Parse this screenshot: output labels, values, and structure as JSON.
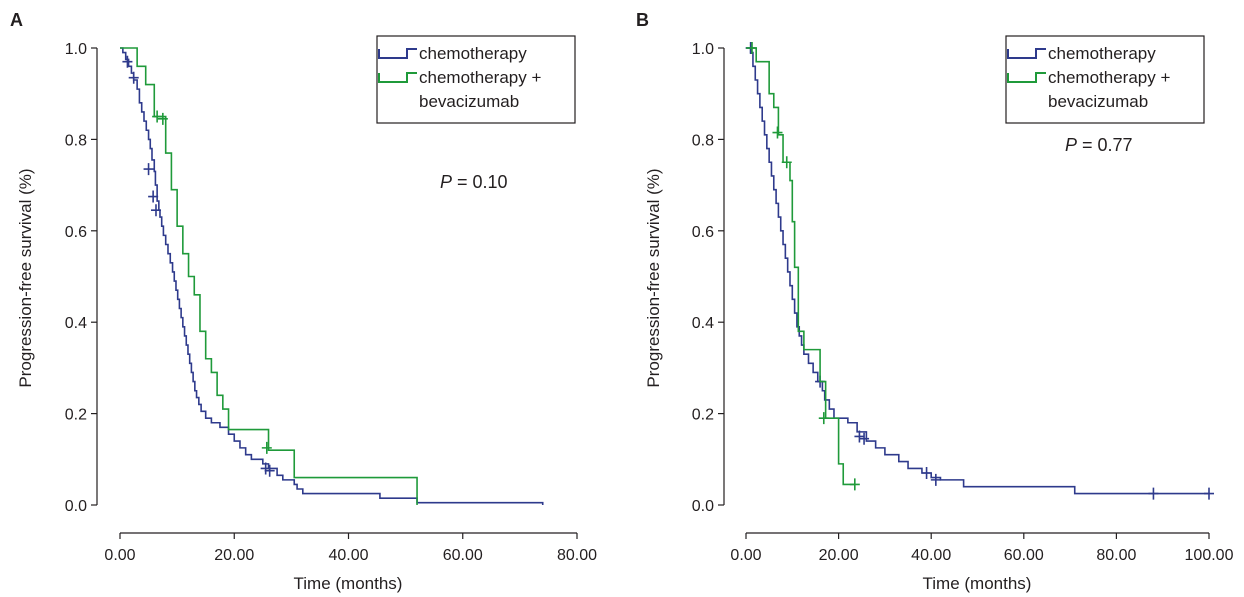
{
  "colors": {
    "chemotherapy": "#2e3a8c",
    "chemotherapy_bev": "#1f9a3a",
    "axis": "#231f20"
  },
  "chart_data": [
    {
      "type": "line",
      "panel": "A",
      "xlabel": "Time (months)",
      "ylabel": "Progression-free survival (%)",
      "xticks": [
        "0.00",
        "20.00",
        "40.00",
        "60.00",
        "80.00"
      ],
      "yticks": [
        "0.0",
        "0.2",
        "0.4",
        "0.6",
        "0.8",
        "1.0"
      ],
      "xlim": [
        0,
        80
      ],
      "ylim": [
        0,
        1.0
      ],
      "legend_position": "top-right",
      "annotation": {
        "prefix": "P",
        "text": " = 0.10"
      },
      "series": [
        {
          "name": "chemotherapy",
          "color_key": "chemotherapy",
          "legend_lines": [
            "chemotherapy"
          ],
          "steps": [
            [
              0,
              1.0
            ],
            [
              0.5,
              0.99
            ],
            [
              1,
              0.975
            ],
            [
              1.5,
              0.96
            ],
            [
              2,
              0.945
            ],
            [
              2.4,
              0.93
            ],
            [
              3,
              0.91
            ],
            [
              3.4,
              0.88
            ],
            [
              3.8,
              0.86
            ],
            [
              4.2,
              0.84
            ],
            [
              4.6,
              0.82
            ],
            [
              5,
              0.8
            ],
            [
              5.3,
              0.78
            ],
            [
              5.6,
              0.755
            ],
            [
              6,
              0.73
            ],
            [
              6.2,
              0.7
            ],
            [
              6.5,
              0.665
            ],
            [
              6.8,
              0.645
            ],
            [
              7,
              0.63
            ],
            [
              7.3,
              0.61
            ],
            [
              7.6,
              0.59
            ],
            [
              8,
              0.57
            ],
            [
              8.4,
              0.55
            ],
            [
              8.8,
              0.53
            ],
            [
              9.2,
              0.51
            ],
            [
              9.5,
              0.49
            ],
            [
              9.8,
              0.47
            ],
            [
              10.1,
              0.45
            ],
            [
              10.4,
              0.43
            ],
            [
              10.7,
              0.41
            ],
            [
              11,
              0.39
            ],
            [
              11.3,
              0.37
            ],
            [
              11.6,
              0.35
            ],
            [
              11.9,
              0.33
            ],
            [
              12.2,
              0.31
            ],
            [
              12.5,
              0.29
            ],
            [
              12.8,
              0.27
            ],
            [
              13.1,
              0.25
            ],
            [
              13.4,
              0.235
            ],
            [
              13.8,
              0.22
            ],
            [
              14.2,
              0.205
            ],
            [
              15,
              0.19
            ],
            [
              16,
              0.18
            ],
            [
              17.5,
              0.17
            ],
            [
              19,
              0.155
            ],
            [
              20,
              0.14
            ],
            [
              21,
              0.125
            ],
            [
              22,
              0.11
            ],
            [
              23,
              0.1
            ],
            [
              25,
              0.09
            ],
            [
              26,
              0.08
            ],
            [
              27.5,
              0.065
            ],
            [
              28.5,
              0.055
            ],
            [
              30.5,
              0.045
            ],
            [
              31,
              0.035
            ],
            [
              32,
              0.025
            ],
            [
              45.5,
              0.015
            ],
            [
              52,
              0.005
            ],
            [
              74,
              0.0
            ]
          ],
          "censored": [
            [
              1.3,
              0.97
            ],
            [
              2.4,
              0.935
            ],
            [
              5,
              0.735
            ],
            [
              5.8,
              0.675
            ],
            [
              6.3,
              0.645
            ],
            [
              25.5,
              0.08
            ],
            [
              26.2,
              0.075
            ]
          ],
          "x_end": 74
        },
        {
          "name": "chemotherapy + bevacizumab",
          "color_key": "chemotherapy_bev",
          "legend_lines": [
            "chemotherapy +",
            "bevacizumab"
          ],
          "steps": [
            [
              0,
              1.0
            ],
            [
              3,
              0.96
            ],
            [
              4.5,
              0.92
            ],
            [
              6,
              0.85
            ],
            [
              8,
              0.77
            ],
            [
              9,
              0.69
            ],
            [
              10,
              0.61
            ],
            [
              11,
              0.55
            ],
            [
              12,
              0.5
            ],
            [
              13,
              0.46
            ],
            [
              14,
              0.38
            ],
            [
              15,
              0.32
            ],
            [
              16,
              0.29
            ],
            [
              17,
              0.24
            ],
            [
              18,
              0.21
            ],
            [
              19,
              0.165
            ],
            [
              26,
              0.12
            ],
            [
              26.5,
              0.12
            ],
            [
              30.5,
              0.06
            ],
            [
              52,
              0.0
            ]
          ],
          "censored": [
            [
              6.5,
              0.85
            ],
            [
              7.5,
              0.845
            ],
            [
              25.7,
              0.125
            ]
          ],
          "x_end": 52
        }
      ]
    },
    {
      "type": "line",
      "panel": "B",
      "xlabel": "Time (months)",
      "ylabel": "Progression-free survival (%)",
      "xticks": [
        "0.00",
        "20.00",
        "40.00",
        "60.00",
        "80.00",
        "100.00"
      ],
      "yticks": [
        "0.0",
        "0.2",
        "0.4",
        "0.6",
        "0.8",
        "1.0"
      ],
      "xlim": [
        0,
        100
      ],
      "ylim": [
        0,
        1.0
      ],
      "legend_position": "top-right",
      "annotation": {
        "prefix": "P",
        "text": " = 0.77"
      },
      "series": [
        {
          "name": "chemotherapy",
          "color_key": "chemotherapy",
          "legend_lines": [
            "chemotherapy"
          ],
          "steps": [
            [
              0,
              1.0
            ],
            [
              1,
              0.99
            ],
            [
              1.5,
              0.96
            ],
            [
              2,
              0.93
            ],
            [
              2.5,
              0.9
            ],
            [
              3,
              0.87
            ],
            [
              3.5,
              0.84
            ],
            [
              4,
              0.81
            ],
            [
              4.5,
              0.78
            ],
            [
              5,
              0.75
            ],
            [
              5.5,
              0.72
            ],
            [
              6,
              0.69
            ],
            [
              6.5,
              0.66
            ],
            [
              7,
              0.63
            ],
            [
              7.5,
              0.6
            ],
            [
              8,
              0.57
            ],
            [
              8.5,
              0.54
            ],
            [
              9,
              0.51
            ],
            [
              9.5,
              0.48
            ],
            [
              10,
              0.45
            ],
            [
              10.5,
              0.42
            ],
            [
              11,
              0.39
            ],
            [
              11.5,
              0.37
            ],
            [
              12,
              0.35
            ],
            [
              12.5,
              0.33
            ],
            [
              13.5,
              0.31
            ],
            [
              14.5,
              0.29
            ],
            [
              15.5,
              0.27
            ],
            [
              16.5,
              0.25
            ],
            [
              17,
              0.23
            ],
            [
              18,
              0.21
            ],
            [
              19,
              0.19
            ],
            [
              22,
              0.18
            ],
            [
              24,
              0.16
            ],
            [
              26,
              0.14
            ],
            [
              28,
              0.125
            ],
            [
              30,
              0.11
            ],
            [
              33,
              0.095
            ],
            [
              35,
              0.08
            ],
            [
              38,
              0.07
            ],
            [
              40,
              0.06
            ],
            [
              42,
              0.055
            ],
            [
              47,
              0.04
            ],
            [
              71,
              0.025
            ],
            [
              100,
              0.025
            ]
          ],
          "censored": [
            [
              1,
              1.0
            ],
            [
              16,
              0.27
            ],
            [
              24.5,
              0.15
            ],
            [
              25.5,
              0.145
            ],
            [
              39,
              0.07
            ],
            [
              41,
              0.055
            ],
            [
              88,
              0.025
            ],
            [
              100,
              0.025
            ]
          ],
          "x_end": 100
        },
        {
          "name": "chemotherapy + bevacizumab",
          "color_key": "chemotherapy_bev",
          "legend_lines": [
            "chemotherapy +",
            "bevacizumab"
          ],
          "steps": [
            [
              0,
              1.0
            ],
            [
              2.2,
              0.97
            ],
            [
              5,
              0.9
            ],
            [
              6,
              0.87
            ],
            [
              7,
              0.81
            ],
            [
              8,
              0.75
            ],
            [
              9.5,
              0.71
            ],
            [
              10,
              0.62
            ],
            [
              10.5,
              0.52
            ],
            [
              11.3,
              0.38
            ],
            [
              12.5,
              0.34
            ],
            [
              16,
              0.27
            ],
            [
              17.2,
              0.19
            ],
            [
              20,
              0.09
            ],
            [
              21,
              0.045
            ],
            [
              23.5,
              0.045
            ]
          ],
          "censored": [
            [
              1.3,
              1.0
            ],
            [
              6.8,
              0.815
            ],
            [
              8.8,
              0.75
            ],
            [
              16.8,
              0.19
            ],
            [
              23.5,
              0.045
            ]
          ],
          "x_end": 23.5
        }
      ]
    }
  ]
}
